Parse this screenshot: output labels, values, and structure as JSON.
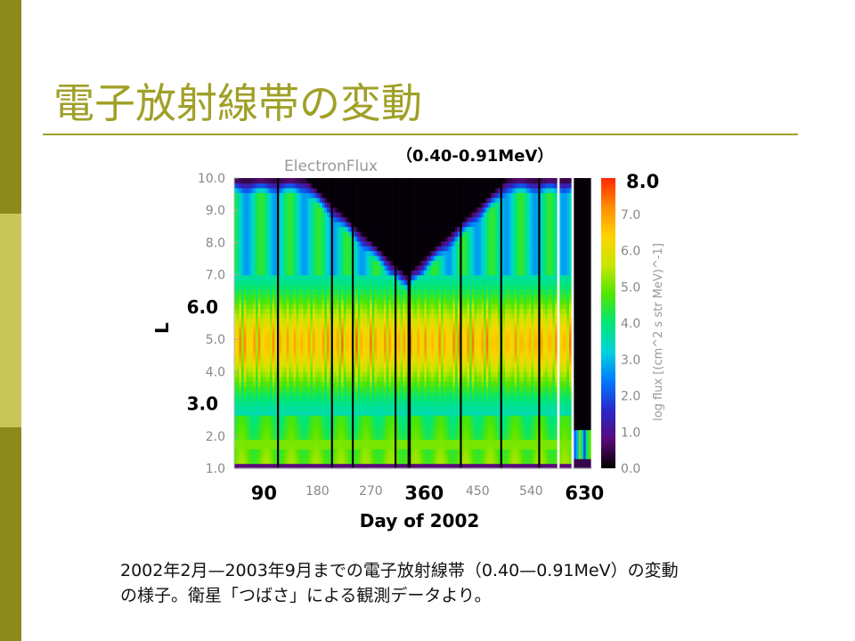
{
  "slide": {
    "title": "電子放射線帯の変動",
    "caption_line1": "2002年2月—2003年9月までの電子放射線帯（0.40—0.91MeV）の変動",
    "caption_line2": "の様子。衛星「つばさ」による観測データより。",
    "side_bar_colors": [
      "#8b8b1c",
      "#c8c85a",
      "#8b8b1c"
    ],
    "accent_color": "#a0a028"
  },
  "chart_data": {
    "type": "heatmap",
    "title": "ElectronFlux",
    "energy_label": "（0.40-0.91MeV）",
    "xlabel": "Day of 2002",
    "ylabel": "L",
    "colorbar_label": "log flux [(cm^2 s str MeV)^-1]",
    "xlim": [
      40,
      640
    ],
    "ylim": [
      1.0,
      10.0
    ],
    "zlim": [
      0.0,
      8.0
    ],
    "x_ticks": [
      "180",
      "270",
      "450",
      "540"
    ],
    "x_ticks_bold": [
      "90",
      "360",
      "630"
    ],
    "y_ticks": [
      "10.0",
      "9.0",
      "8.0",
      "7.0",
      "5.0",
      "4.0",
      "2.0",
      "1.0"
    ],
    "y_ticks_bold": [
      "6.0",
      "3.0"
    ],
    "colorbar_ticks": [
      "7.0",
      "6.0",
      "5.0",
      "4.0",
      "3.0",
      "2.0",
      "1.0",
      "0.0"
    ],
    "colorbar_max_label": "8.0",
    "colorscale": [
      "#000000",
      "#5a0a7a",
      "#2828c8",
      "#0078ff",
      "#00d2dc",
      "#00e678",
      "#50e600",
      "#c8e600",
      "#ffd200",
      "#ff8c00",
      "#ff2800"
    ]
  }
}
